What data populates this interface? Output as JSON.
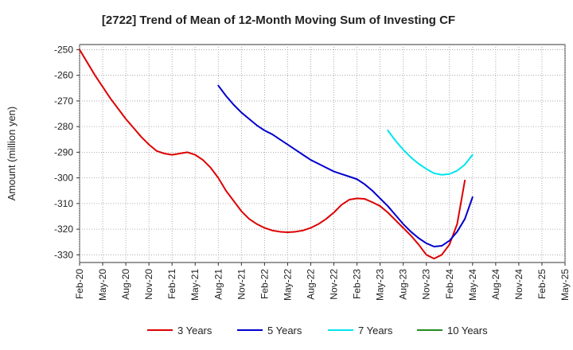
{
  "chart_data": {
    "type": "line",
    "title": "[2722]  Trend of Mean of 12-Month Moving Sum of Investing CF",
    "xlabel": "",
    "ylabel": "Amount (million yen)",
    "ylim": [
      -333,
      -248
    ],
    "yticks": [
      -250,
      -260,
      -270,
      -280,
      -290,
      -300,
      -310,
      -320,
      -330
    ],
    "categories": [
      "Feb-20",
      "May-20",
      "Aug-20",
      "Nov-20",
      "Feb-21",
      "May-21",
      "Aug-21",
      "Nov-21",
      "Feb-22",
      "May-22",
      "Aug-22",
      "Nov-22",
      "Feb-23",
      "May-23",
      "Aug-23",
      "Nov-23",
      "Feb-24",
      "May-24",
      "Aug-24",
      "Nov-24",
      "Feb-25",
      "May-25"
    ],
    "legend_position": "bottom",
    "grid": true,
    "series": [
      {
        "name": "3 Years",
        "color": "#dd0000",
        "points": [
          [
            0,
            -250
          ],
          [
            1,
            -255
          ],
          [
            2,
            -260
          ],
          [
            3,
            -264.5
          ],
          [
            4,
            -269
          ],
          [
            5,
            -273
          ],
          [
            6,
            -277
          ],
          [
            7,
            -280.5
          ],
          [
            8,
            -284
          ],
          [
            9,
            -287
          ],
          [
            10,
            -289.5
          ],
          [
            11,
            -290.5
          ],
          [
            12,
            -291
          ],
          [
            13,
            -290.5
          ],
          [
            14,
            -290
          ],
          [
            15,
            -291
          ],
          [
            16,
            -293
          ],
          [
            17,
            -296
          ],
          [
            18,
            -300
          ],
          [
            19,
            -305
          ],
          [
            20,
            -309
          ],
          [
            21,
            -313
          ],
          [
            22,
            -316
          ],
          [
            23,
            -318
          ],
          [
            24,
            -319.5
          ],
          [
            25,
            -320.5
          ],
          [
            26,
            -321
          ],
          [
            27,
            -321.2
          ],
          [
            28,
            -321
          ],
          [
            29,
            -320.5
          ],
          [
            30,
            -319.5
          ],
          [
            31,
            -318
          ],
          [
            32,
            -316
          ],
          [
            33,
            -313.5
          ],
          [
            34,
            -310.5
          ],
          [
            35,
            -308.5
          ],
          [
            36,
            -308
          ],
          [
            37,
            -308.2
          ],
          [
            38,
            -309.5
          ],
          [
            39,
            -311
          ],
          [
            40,
            -313.5
          ],
          [
            41,
            -316.5
          ],
          [
            42,
            -319.5
          ],
          [
            43,
            -322.5
          ],
          [
            44,
            -326
          ],
          [
            45,
            -330
          ],
          [
            46,
            -331.5
          ],
          [
            47,
            -330
          ],
          [
            48,
            -326
          ],
          [
            49,
            -318
          ],
          [
            50,
            -301
          ]
        ]
      },
      {
        "name": "5 Years",
        "color": "#0000cc",
        "points": [
          [
            18,
            -264
          ],
          [
            19,
            -268
          ],
          [
            20,
            -271.5
          ],
          [
            21,
            -274.5
          ],
          [
            22,
            -277
          ],
          [
            23,
            -279.5
          ],
          [
            24,
            -281.5
          ],
          [
            25,
            -283
          ],
          [
            26,
            -285
          ],
          [
            27,
            -287
          ],
          [
            28,
            -289
          ],
          [
            29,
            -291
          ],
          [
            30,
            -293
          ],
          [
            31,
            -294.5
          ],
          [
            32,
            -296
          ],
          [
            33,
            -297.5
          ],
          [
            34,
            -298.5
          ],
          [
            35,
            -299.5
          ],
          [
            36,
            -300.5
          ],
          [
            37,
            -302.5
          ],
          [
            38,
            -305
          ],
          [
            39,
            -308
          ],
          [
            40,
            -311
          ],
          [
            41,
            -314.5
          ],
          [
            42,
            -318
          ],
          [
            43,
            -321
          ],
          [
            44,
            -323.5
          ],
          [
            45,
            -325.5
          ],
          [
            46,
            -326.8
          ],
          [
            47,
            -326.5
          ],
          [
            48,
            -324.5
          ],
          [
            49,
            -321
          ],
          [
            50,
            -316
          ],
          [
            51,
            -307.5
          ]
        ]
      },
      {
        "name": "7 Years",
        "color": "#00e5ee",
        "points": [
          [
            40,
            -281.5
          ],
          [
            41,
            -285.5
          ],
          [
            42,
            -289
          ],
          [
            43,
            -292
          ],
          [
            44,
            -294.5
          ],
          [
            45,
            -296.5
          ],
          [
            46,
            -298.2
          ],
          [
            47,
            -298.8
          ],
          [
            48,
            -298.5
          ],
          [
            49,
            -297.2
          ],
          [
            50,
            -294.8
          ],
          [
            51,
            -291
          ]
        ]
      },
      {
        "name": "10 Years",
        "color": "#228b22",
        "points": []
      }
    ]
  }
}
